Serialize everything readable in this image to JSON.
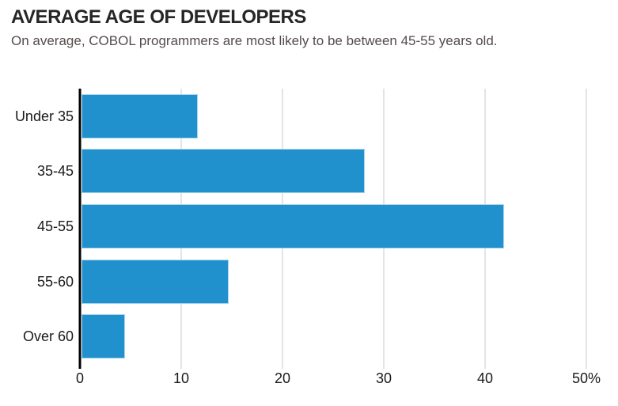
{
  "header": {
    "title": "AVERAGE AGE OF DEVELOPERS",
    "subtitle": "On average, COBOL programmers are most likely to be between 45-55 years old."
  },
  "colors": {
    "bar": "#2191ce",
    "bar_border": "#a8d4ec",
    "gridline": "#c9c9c9",
    "axis_line": "#000000",
    "title_text": "#262626",
    "subtitle_text": "#554b4b",
    "label_text": "#1a1a1a"
  },
  "chart_data": {
    "type": "bar",
    "orientation": "horizontal",
    "title": "AVERAGE AGE OF DEVELOPERS",
    "subtitle": "On average, COBOL programmers are most likely to be between 45-55 years old.",
    "categories": [
      "Under 35",
      "35-45",
      "45-55",
      "55-60",
      "Over 60"
    ],
    "values": [
      11.5,
      28,
      41.7,
      14.5,
      4.3
    ],
    "unit": "percent",
    "xlim": [
      0,
      50
    ],
    "x_ticks": [
      0,
      10,
      20,
      30,
      40,
      50
    ],
    "x_tick_labels": [
      "0",
      "10",
      "20",
      "30",
      "40",
      "50%"
    ],
    "grid": true,
    "legend": "none",
    "xlabel": "",
    "ylabel": ""
  }
}
